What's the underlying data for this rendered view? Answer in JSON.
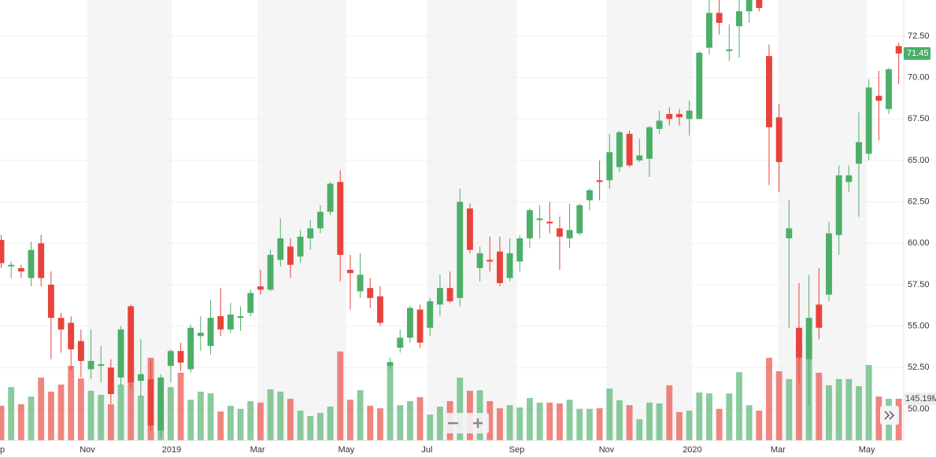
{
  "chart_data": {
    "type": "candlestick",
    "up_color": "#4caf68",
    "down_color": "#e8433b",
    "grid": true,
    "xlim": [
      -0.12,
      90.5
    ],
    "ylim": [
      48.1,
      74.68
    ],
    "vlim": [
      0,
      1534
    ],
    "xticks": [
      {
        "value": 0.12,
        "label": "p"
      },
      {
        "value": 8.64,
        "label": "Nov"
      },
      {
        "value": 17.09,
        "label": "2019"
      },
      {
        "value": 25.7,
        "label": "Mar"
      },
      {
        "value": 34.6,
        "label": "May"
      },
      {
        "value": 42.7,
        "label": "Jul"
      },
      {
        "value": 51.7,
        "label": "Sep"
      },
      {
        "value": 60.7,
        "label": "Nov"
      },
      {
        "value": 69.3,
        "label": "2020"
      },
      {
        "value": 77.9,
        "label": "Mar"
      },
      {
        "value": 86.8,
        "label": "May"
      }
    ],
    "yticks": [
      {
        "value": 50,
        "label": "50.00"
      },
      {
        "value": 52.5,
        "label": "52.50"
      },
      {
        "value": 55,
        "label": "55.00"
      },
      {
        "value": 57.5,
        "label": "57.50"
      },
      {
        "value": 60,
        "label": "60.00"
      },
      {
        "value": 62.5,
        "label": "62.50"
      },
      {
        "value": 65,
        "label": "65.00"
      },
      {
        "value": 67.5,
        "label": "67.50"
      },
      {
        "value": 70,
        "label": "70.00"
      },
      {
        "value": 72.5,
        "label": "72.50"
      }
    ],
    "open": [
      60.2,
      58.6,
      58.5,
      57.9,
      60.0,
      57.5,
      55.5,
      55.2,
      54.1,
      52.4,
      52.6,
      52.5,
      51.9,
      56.2,
      51.7,
      51.8,
      48.7,
      52.6,
      53.5,
      52.4,
      54.4,
      53.8,
      55.6,
      54.8,
      55.5,
      55.8,
      57.4,
      57.2,
      59.0,
      59.8,
      59.2,
      60.3,
      60.9,
      61.9,
      63.7,
      58.4,
      57.1,
      57.3,
      56.8,
      52.6,
      53.7,
      54.3,
      56.0,
      54.9,
      56.3,
      57.3,
      56.7,
      62.1,
      58.5,
      59.0,
      59.5,
      57.9,
      58.9,
      60.3,
      61.4,
      61.3,
      60.9,
      60.3,
      60.6,
      62.6,
      63.8,
      63.8,
      64.6,
      66.6,
      65.0,
      65.1,
      66.9,
      67.8,
      67.8,
      67.5,
      67.5,
      71.8,
      73.9,
      71.6,
      73.1,
      74.0,
      74.7,
      71.3,
      67.6,
      60.3,
      54.9,
      53.0,
      56.3,
      56.9,
      60.5,
      63.7,
      64.8,
      65.4,
      68.9,
      68.1,
      71.9
    ],
    "high": [
      60.5,
      58.9,
      58.7,
      60.1,
      60.5,
      58.3,
      55.8,
      55.6,
      54.8,
      54.8,
      53.8,
      53.0,
      55.0,
      56.3,
      54.2,
      52.9,
      52.1,
      53.6,
      54.0,
      55.1,
      55.6,
      56.6,
      57.3,
      56.4,
      56.2,
      57.2,
      58.4,
      59.6,
      61.5,
      60.3,
      60.8,
      61.4,
      62.3,
      63.7,
      64.4,
      59.3,
      59.4,
      57.9,
      57.4,
      53.1,
      54.8,
      56.2,
      56.3,
      56.7,
      58.1,
      58.3,
      63.3,
      62.4,
      59.8,
      60.4,
      60.4,
      60.3,
      60.5,
      62.1,
      62.3,
      62.5,
      61.6,
      62.4,
      62.4,
      63.3,
      65.0,
      66.6,
      66.8,
      66.8,
      66.3,
      67.1,
      68.0,
      68.2,
      68.1,
      68.6,
      71.6,
      74.7,
      74.7,
      73.2,
      74.7,
      74.7,
      74.7,
      72.0,
      68.4,
      62.6,
      57.6,
      58.1,
      58.5,
      61.3,
      64.7,
      64.7,
      67.9,
      69.9,
      70.4,
      70.6,
      72.1
    ],
    "low": [
      58.5,
      57.9,
      57.9,
      57.4,
      57.4,
      53.0,
      53.4,
      52.3,
      51.9,
      51.8,
      51.6,
      50.3,
      51.4,
      51.2,
      50.7,
      48.7,
      48.3,
      51.6,
      52.3,
      52.2,
      53.5,
      53.3,
      54.4,
      54.6,
      54.7,
      55.6,
      56.9,
      57.1,
      58.6,
      57.9,
      58.8,
      59.6,
      60.6,
      61.7,
      57.7,
      56.0,
      56.7,
      56.1,
      55.0,
      52.4,
      53.4,
      54.0,
      53.7,
      54.4,
      55.6,
      56.4,
      56.2,
      59.4,
      57.7,
      58.3,
      57.4,
      57.7,
      58.3,
      59.7,
      60.3,
      60.6,
      58.4,
      59.7,
      60.5,
      62.0,
      62.6,
      63.3,
      64.3,
      64.6,
      64.9,
      64.0,
      66.6,
      67.1,
      67.1,
      66.5,
      67.5,
      71.4,
      72.6,
      71.0,
      71.2,
      73.3,
      74.0,
      63.5,
      63.1,
      54.9,
      51.5,
      50.2,
      54.2,
      56.5,
      59.3,
      63.1,
      61.6,
      65.0,
      66.2,
      67.8,
      69.6
    ],
    "close": [
      58.8,
      58.7,
      58.3,
      59.6,
      57.9,
      55.5,
      54.8,
      53.6,
      52.9,
      52.9,
      52.7,
      50.9,
      54.8,
      51.6,
      52.1,
      49.0,
      51.9,
      53.5,
      52.8,
      54.9,
      54.6,
      55.5,
      54.8,
      55.7,
      55.6,
      57.0,
      57.2,
      59.3,
      60.3,
      58.7,
      60.4,
      60.9,
      61.9,
      63.6,
      59.3,
      58.2,
      58.1,
      56.7,
      55.2,
      52.8,
      54.3,
      56.1,
      54.0,
      56.5,
      57.3,
      56.5,
      62.5,
      59.6,
      59.4,
      58.9,
      57.6,
      59.4,
      60.3,
      62.0,
      61.5,
      61.2,
      60.4,
      60.8,
      62.3,
      63.2,
      63.7,
      65.5,
      66.7,
      64.7,
      65.3,
      67.0,
      67.4,
      67.5,
      67.6,
      68.0,
      71.5,
      73.9,
      73.3,
      71.7,
      74.0,
      74.7,
      74.2,
      67.0,
      64.9,
      60.9,
      53.1,
      55.5,
      54.9,
      60.6,
      64.1,
      64.1,
      66.1,
      69.4,
      68.6,
      70.5,
      71.45
    ],
    "volume": [
      121,
      186,
      126,
      153,
      219,
      170,
      195,
      260,
      216,
      173,
      159,
      126,
      195,
      288,
      156,
      288,
      148,
      186,
      236,
      142,
      170,
      164,
      101,
      121,
      110,
      137,
      132,
      178,
      170,
      145,
      104,
      85,
      96,
      118,
      310,
      142,
      175,
      121,
      112,
      274,
      123,
      137,
      151,
      90,
      118,
      137,
      219,
      173,
      175,
      137,
      112,
      123,
      115,
      148,
      132,
      132,
      129,
      142,
      110,
      110,
      112,
      181,
      140,
      123,
      74,
      132,
      129,
      192,
      99,
      104,
      167,
      164,
      110,
      164,
      238,
      123,
      104,
      288,
      241,
      214,
      334,
      370,
      236,
      192,
      214,
      214,
      189,
      263,
      153,
      145,
      145.19
    ],
    "last_close_label": "71.45",
    "last_volume_label": "145.19M"
  }
}
